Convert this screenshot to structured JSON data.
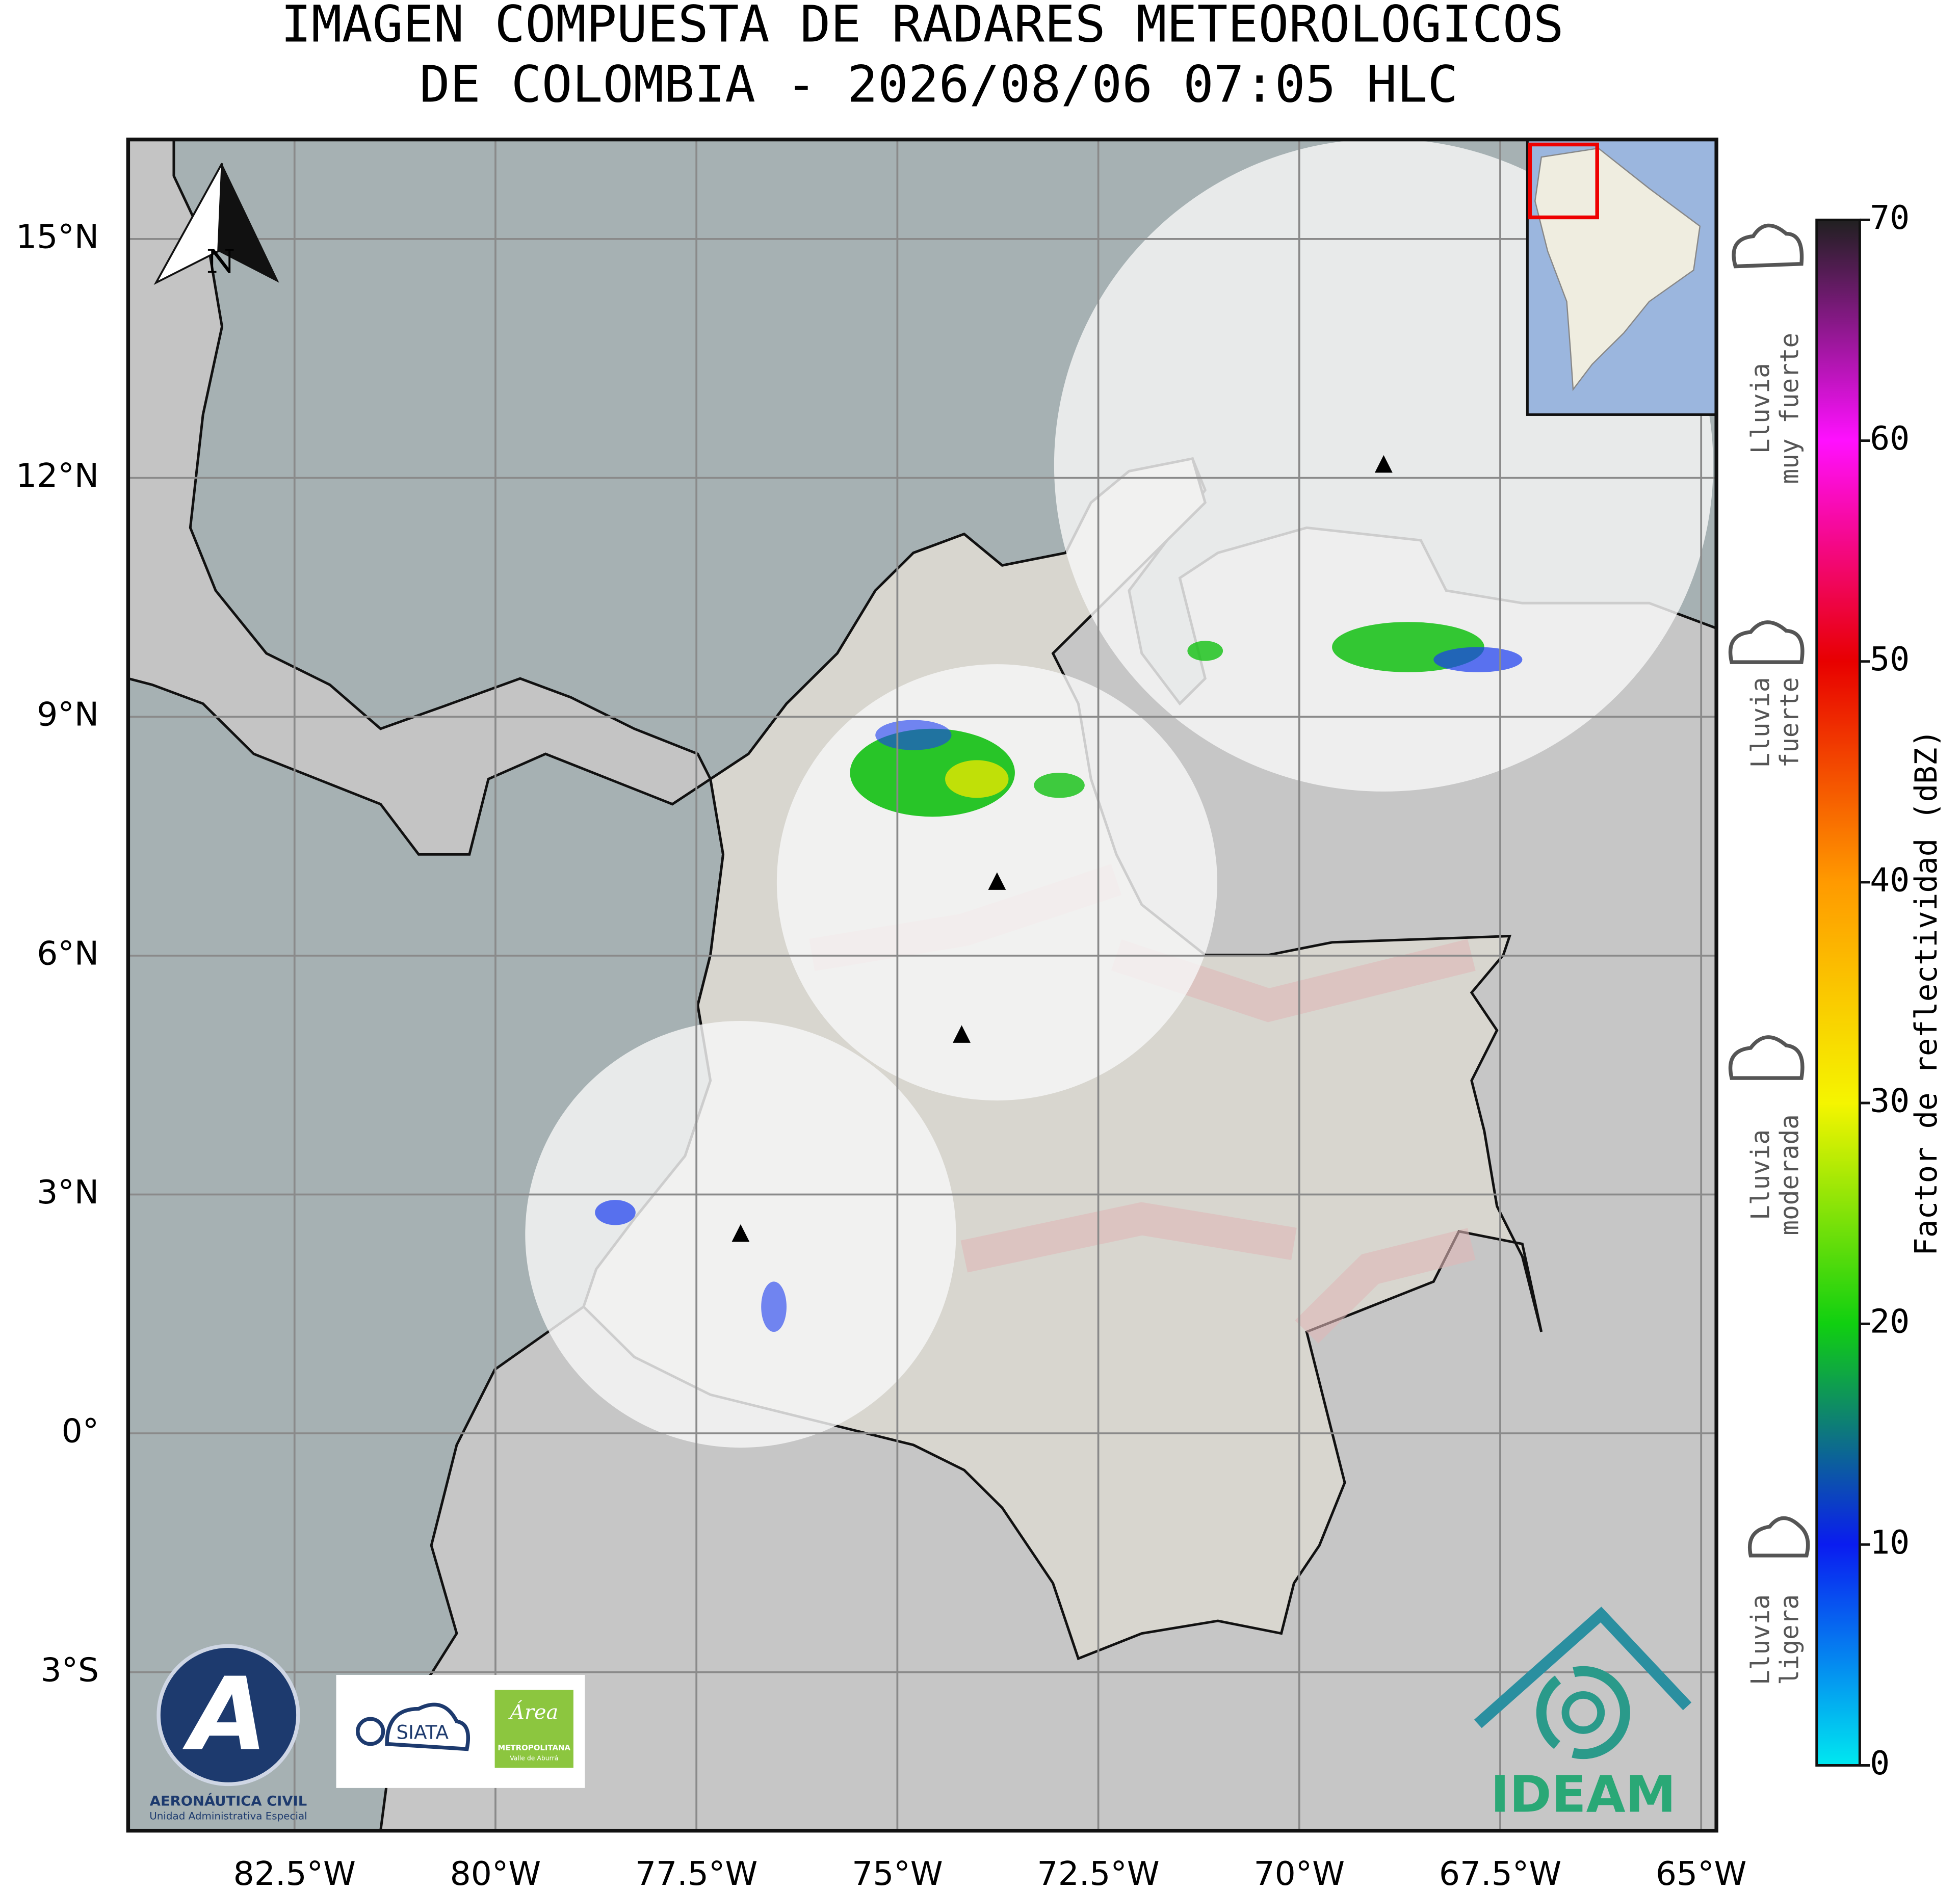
{
  "title": [
    "IMAGEN COMPUESTA DE RADARES METEOROLOGICOS",
    "DE COLOMBIA - 2026/08/06 07:05 HLC"
  ],
  "map": {
    "xlim": [
      -84.57,
      -64.81
    ],
    "ylim": [
      -4.99,
      16.25
    ],
    "xticks": [
      {
        "value": -82.5,
        "label": "82.5°W"
      },
      {
        "value": -80,
        "label": "80°W"
      },
      {
        "value": -77.5,
        "label": "77.5°W"
      },
      {
        "value": -75,
        "label": "75°W"
      },
      {
        "value": -72.5,
        "label": "72.5°W"
      },
      {
        "value": -70,
        "label": "70°W"
      },
      {
        "value": -67.5,
        "label": "67.5°W"
      },
      {
        "value": -65,
        "label": "65°W"
      }
    ],
    "yticks": [
      {
        "value": 15,
        "label": "15°N"
      },
      {
        "value": 12,
        "label": "12°N"
      },
      {
        "value": 9,
        "label": "9°N"
      },
      {
        "value": 6,
        "label": "6°N"
      },
      {
        "value": 3,
        "label": "3°N"
      },
      {
        "value": 0,
        "label": "0°"
      },
      {
        "value": -3,
        "label": "3°S"
      }
    ],
    "grid": true,
    "north": "N",
    "radars": [
      {
        "lon": -73.76,
        "lat": 6.92,
        "range_deg": 2.74
      },
      {
        "lon": -74.2,
        "lat": 5.0,
        "range_deg": 0
      },
      {
        "lon": -76.95,
        "lat": 2.5,
        "range_deg": 2.68
      },
      {
        "lon": -68.95,
        "lat": 12.16,
        "range_deg": 4.1
      }
    ]
  },
  "colorbar": {
    "label": "Factor de reflectividad (dBZ)",
    "range": [
      0,
      70
    ],
    "ticks": [
      0,
      10,
      20,
      30,
      40,
      50,
      60,
      70
    ],
    "colors": [
      "#00e8f0",
      "#0a1cf0",
      "#10d010",
      "#f5f500",
      "#ff9a00",
      "#e80000",
      "#ff10ff",
      "#202020"
    ]
  },
  "rain_legend": [
    {
      "lines": [
        "Lluvia",
        "muy fuerte"
      ]
    },
    {
      "lines": [
        "Lluvia",
        "fuerte"
      ]
    },
    {
      "lines": [
        "Lluvia",
        "moderada"
      ]
    },
    {
      "lines": [
        "Lluvia",
        "ligera"
      ]
    }
  ],
  "logos": {
    "aerocivil": [
      "AERONÁUTICA CIVIL",
      "Unidad Administrativa Especial"
    ],
    "siata": "SIATA",
    "area": [
      "Área",
      "METROPOLITANA",
      "Valle de Aburrá"
    ],
    "ideam": "IDEAM"
  }
}
